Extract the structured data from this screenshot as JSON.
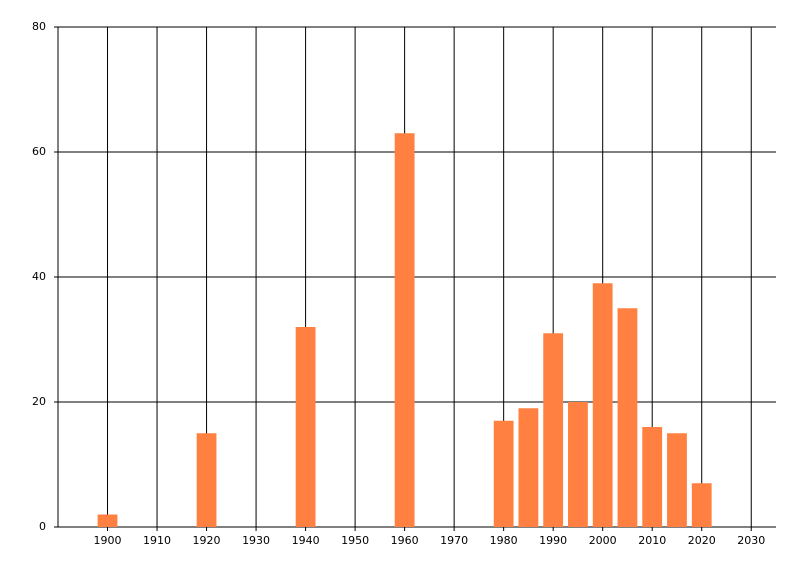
{
  "chart_data": {
    "type": "bar",
    "x": [
      1900,
      1920,
      1940,
      1960,
      1980,
      1985,
      1990,
      1995,
      2000,
      2005,
      2010,
      2015,
      2020
    ],
    "values": [
      2,
      15,
      32,
      63,
      17,
      19,
      31,
      20,
      39,
      35,
      16,
      15,
      7
    ],
    "color": "#ff8040",
    "xlim": [
      1890,
      2035
    ],
    "xticks": [
      1900,
      1910,
      1920,
      1930,
      1940,
      1950,
      1960,
      1970,
      1980,
      1990,
      2000,
      2010,
      2020,
      2030
    ],
    "ylim": [
      0,
      80
    ],
    "yticks": [
      0,
      20,
      40,
      60,
      80
    ],
    "grid": true
  }
}
